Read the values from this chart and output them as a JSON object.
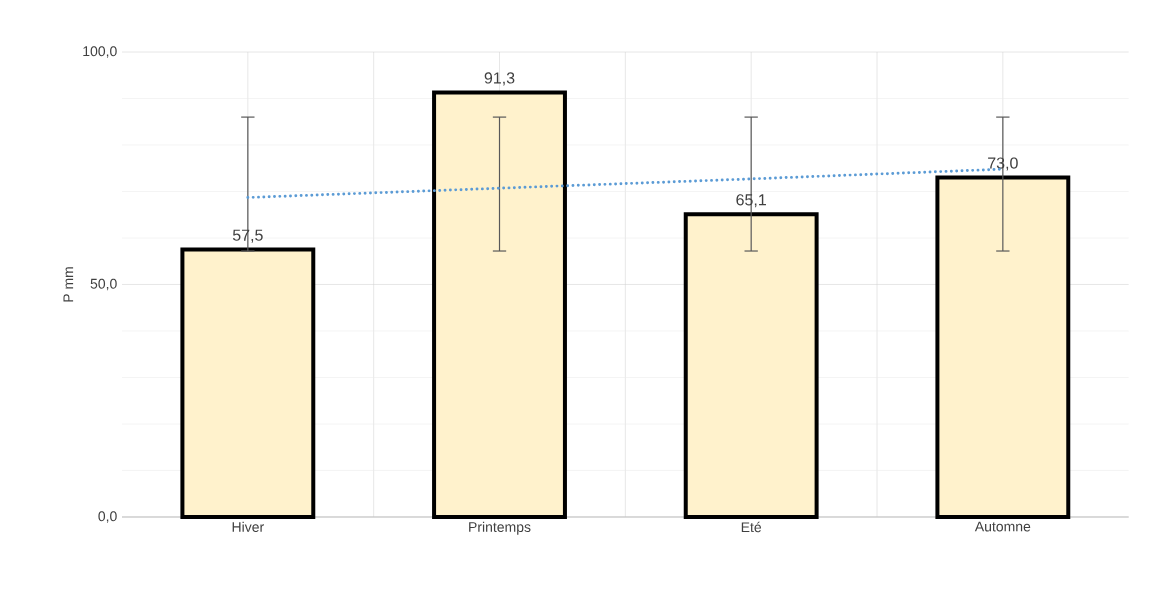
{
  "chart_data": {
    "type": "bar",
    "ylabel": "P mm",
    "categories": [
      "Hiver",
      "Printemps",
      "Eté",
      "Automne"
    ],
    "series": [
      {
        "color": "#fff2cc",
        "values": [
          57.5,
          91.3,
          65.1,
          73.0
        ],
        "errors": [
          [
            57.2,
            86.0
          ],
          [
            57.2,
            86.0
          ],
          [
            57.2,
            86.0
          ],
          [
            57.2,
            86.0
          ]
        ],
        "value_labels": [
          "57,5",
          "91,3",
          "65,1",
          "73,0"
        ]
      },
      {
        "type": "line",
        "color": "#5b9bd5",
        "line_style": "dotted",
        "marker": "none",
        "values": [
          68.7,
          70.7,
          72.7,
          74.8
        ]
      }
    ],
    "ylim": [
      0,
      100
    ],
    "yticks": [
      {
        "value": 0,
        "label": "0,0"
      },
      {
        "value": 50,
        "label": "50,0"
      },
      {
        "value": 100,
        "label": "100,0"
      }
    ],
    "grid": true
  }
}
